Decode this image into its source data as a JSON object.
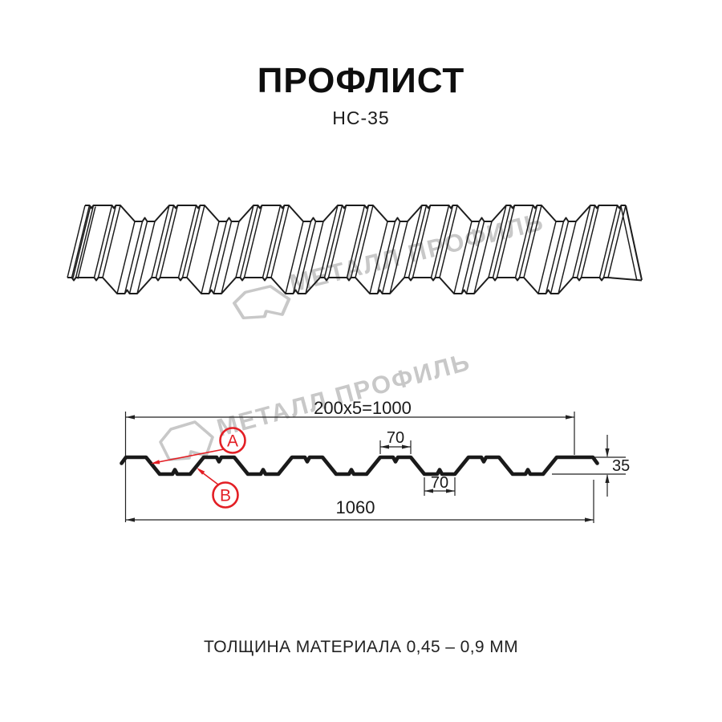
{
  "page": {
    "title": "ПРОФЛИСТ",
    "subtitle": "НС-35",
    "footer": "ТОЛЩИНА МАТЕРИАЛА 0,45 – 0,9 ММ"
  },
  "watermark": {
    "text": "МЕТАЛЛ ПРОФИЛЬ",
    "color": "#c8c8c8"
  },
  "diagram": {
    "profile_name": "НС-35",
    "dims": {
      "working_width": "200x5=1000",
      "rib_top": "70",
      "rib_bottom": "70",
      "height": "35",
      "overall_width": "1060"
    },
    "labels": {
      "a": "А",
      "b": "В"
    },
    "colors": {
      "accent": "#e31e24",
      "line": "#1c1c1c",
      "watermark": "#c8c8c8"
    }
  }
}
